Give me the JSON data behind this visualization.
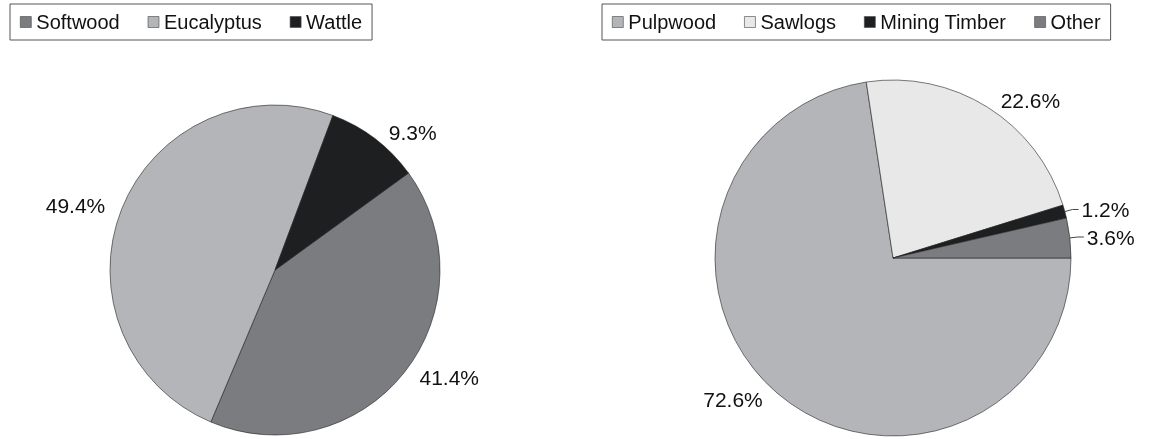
{
  "chart_data": [
    {
      "type": "pie",
      "categories": [
        "Softwood",
        "Eucalyptus",
        "Wattle"
      ],
      "values": [
        41.4,
        49.4,
        9.3
      ],
      "value_labels": [
        "41.4%",
        "49.4%",
        "9.3%"
      ],
      "colors": [
        "#7b7c80",
        "#b4b5b9",
        "#1e1f21"
      ],
      "legend": "top"
    },
    {
      "type": "pie",
      "categories": [
        "Pulpwood",
        "Sawlogs",
        "Mining Timber",
        "Other"
      ],
      "values": [
        72.6,
        22.6,
        1.2,
        3.6
      ],
      "value_labels": [
        "72.6%",
        "22.6%",
        "1.2%",
        "3.6%"
      ],
      "colors": [
        "#b4b5b9",
        "#e8e8e8",
        "#1e1f21",
        "#7b7c80"
      ],
      "legend": "top"
    }
  ]
}
